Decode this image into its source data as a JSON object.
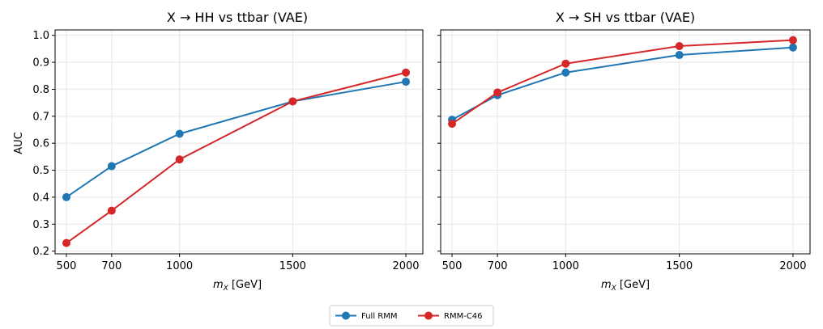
{
  "chart_data": [
    {
      "type": "line",
      "title": "X → HH vs ttbar (VAE)",
      "xlabel_main": "m",
      "xlabel_sub": "X",
      "xlabel_unit": " [GeV]",
      "ylabel": "AUC",
      "x": [
        500,
        700,
        1000,
        1500,
        2000
      ],
      "xticks": [
        "500",
        "700",
        "1000",
        "1500",
        "2000"
      ],
      "xlim": [
        450,
        2075
      ],
      "ylim": [
        0.19,
        1.02
      ],
      "yticks": [
        "0.2",
        "0.3",
        "0.4",
        "0.5",
        "0.6",
        "0.7",
        "0.8",
        "0.9",
        "1.0"
      ],
      "grid": true,
      "series": [
        {
          "name": "Full RMM",
          "color": "#1f77b4",
          "values": [
            0.4,
            0.515,
            0.635,
            0.755,
            0.828
          ]
        },
        {
          "name": "RMM-C46",
          "color": "#d62728",
          "values": [
            0.23,
            0.35,
            0.54,
            0.755,
            0.862
          ]
        }
      ]
    },
    {
      "type": "line",
      "title": "X → SH vs ttbar (VAE)",
      "xlabel_main": "m",
      "xlabel_sub": "X",
      "xlabel_unit": " [GeV]",
      "ylabel": "",
      "x": [
        500,
        700,
        1000,
        1500,
        2000
      ],
      "xticks": [
        "500",
        "700",
        "1000",
        "1500",
        "2000"
      ],
      "xlim": [
        450,
        2075
      ],
      "ylim": [
        0.19,
        1.02
      ],
      "yticks": [
        "0.2",
        "0.3",
        "0.4",
        "0.5",
        "0.6",
        "0.7",
        "0.8",
        "0.9",
        "1.0"
      ],
      "grid": true,
      "series": [
        {
          "name": "Full RMM",
          "color": "#1f77b4",
          "values": [
            0.687,
            0.778,
            0.862,
            0.927,
            0.955
          ]
        },
        {
          "name": "RMM-C46",
          "color": "#d62728",
          "values": [
            0.672,
            0.788,
            0.895,
            0.96,
            0.982
          ]
        }
      ]
    }
  ],
  "legend": {
    "placement": "bottom-center",
    "items": [
      {
        "label": "Full RMM",
        "color": "#1f77b4"
      },
      {
        "label": "RMM-C46",
        "color": "#d62728"
      }
    ]
  }
}
